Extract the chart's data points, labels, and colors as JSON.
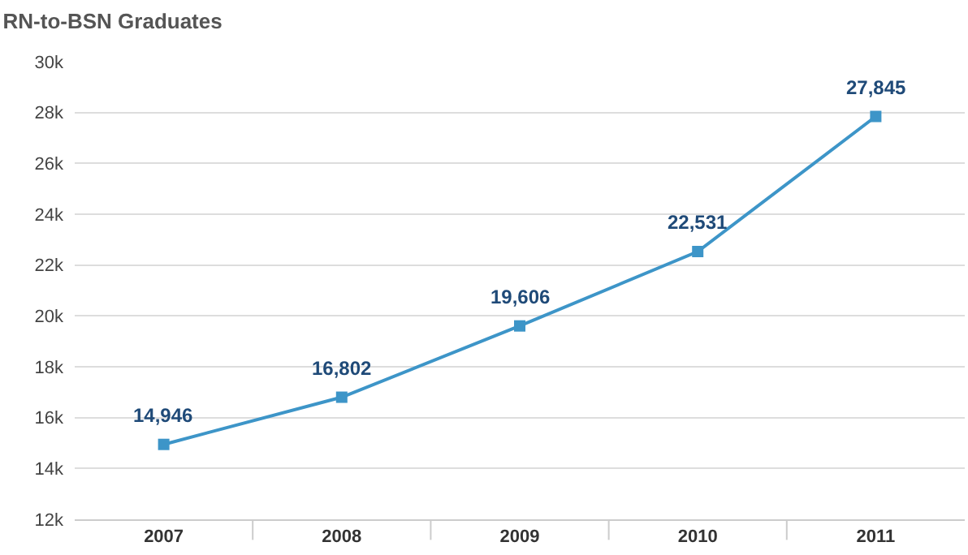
{
  "chart_data": {
    "type": "line",
    "title": "RN-to-BSN Graduates",
    "categories": [
      "2007",
      "2008",
      "2009",
      "2010",
      "2011"
    ],
    "series": [
      {
        "color": "#3d95c8",
        "values": [
          14946,
          16802,
          19606,
          22531,
          27845
        ],
        "value_labels": [
          "14,946",
          "16,802",
          "19,606",
          "22,531",
          "27,845"
        ]
      }
    ],
    "ylim": [
      12000,
      30000
    ],
    "yticks": [
      {
        "value": 12000,
        "label": "12k"
      },
      {
        "value": 14000,
        "label": "14k"
      },
      {
        "value": 16000,
        "label": "16k"
      },
      {
        "value": 18000,
        "label": "18k"
      },
      {
        "value": 20000,
        "label": "20k"
      },
      {
        "value": 22000,
        "label": "22k"
      },
      {
        "value": 24000,
        "label": "24k"
      },
      {
        "value": 26000,
        "label": "26k"
      },
      {
        "value": 28000,
        "label": "28k"
      },
      {
        "value": 30000,
        "label": "30k"
      }
    ],
    "grid": "y",
    "marker": "square",
    "line_style": "solid"
  }
}
